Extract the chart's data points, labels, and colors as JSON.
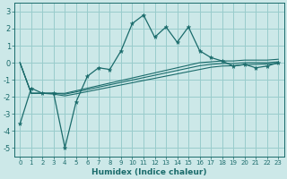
{
  "xlabel": "Humidex (Indice chaleur)",
  "bg_color": "#cce8e8",
  "grid_color": "#99cccc",
  "line_color": "#1a6b6b",
  "xlim": [
    -0.5,
    23.5
  ],
  "ylim": [
    -5.5,
    3.5
  ],
  "yticks": [
    -5,
    -4,
    -3,
    -2,
    -1,
    0,
    1,
    2,
    3
  ],
  "xticks": [
    0,
    1,
    2,
    3,
    4,
    5,
    6,
    7,
    8,
    9,
    10,
    11,
    12,
    13,
    14,
    15,
    16,
    17,
    18,
    19,
    20,
    21,
    22,
    23
  ],
  "main_line_x": [
    0,
    1,
    2,
    3,
    4,
    5,
    6,
    7,
    8,
    9,
    10,
    11,
    12,
    13,
    14,
    15,
    16,
    17,
    18,
    19,
    20,
    21,
    22,
    23
  ],
  "main_line_y": [
    -3.6,
    -1.5,
    -1.8,
    -1.8,
    -5.0,
    -2.3,
    -0.8,
    -0.3,
    -0.4,
    0.7,
    2.3,
    2.8,
    1.5,
    2.1,
    1.2,
    2.1,
    0.7,
    0.3,
    0.1,
    -0.2,
    -0.1,
    -0.3,
    -0.2,
    0.0
  ],
  "band_lines": [
    [
      0,
      -1.8,
      -1.8,
      -1.8,
      -1.8,
      -1.65,
      -1.5,
      -1.35,
      -1.2,
      -1.05,
      -0.9,
      -0.75,
      -0.6,
      -0.45,
      -0.3,
      -0.15,
      0.0,
      0.05,
      0.1,
      0.1,
      0.15,
      0.15,
      0.15,
      0.2
    ],
    [
      0,
      -1.8,
      -1.8,
      -1.8,
      -1.85,
      -1.72,
      -1.58,
      -1.44,
      -1.3,
      -1.16,
      -1.02,
      -0.88,
      -0.74,
      -0.6,
      -0.46,
      -0.32,
      -0.18,
      -0.1,
      -0.05,
      -0.05,
      0.0,
      0.0,
      0.0,
      0.05
    ],
    [
      0,
      -1.8,
      -1.8,
      -1.85,
      -1.95,
      -1.83,
      -1.7,
      -1.57,
      -1.44,
      -1.31,
      -1.18,
      -1.05,
      -0.92,
      -0.79,
      -0.66,
      -0.53,
      -0.4,
      -0.27,
      -0.2,
      -0.18,
      -0.12,
      -0.1,
      -0.08,
      -0.05
    ]
  ]
}
